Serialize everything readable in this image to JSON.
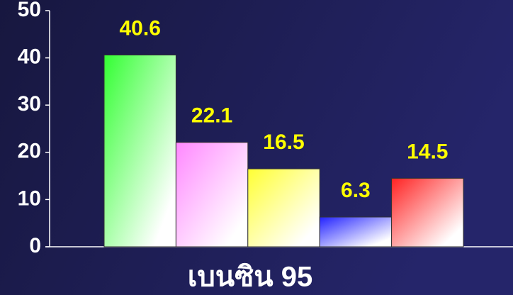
{
  "chart_data": {
    "type": "bar",
    "x_label": "เบนซิน 95",
    "categories": [
      null,
      null,
      null,
      null,
      null
    ],
    "values": [
      40.6,
      22.1,
      16.5,
      6.3,
      14.5
    ],
    "colors": [
      "#33ff33",
      "#ff88ff",
      "#ffff33",
      "#2222ff",
      "#ff2222"
    ],
    "ylim": [
      0,
      50
    ],
    "yticks": [
      0,
      10,
      20,
      30,
      40,
      50
    ],
    "grid": false
  }
}
